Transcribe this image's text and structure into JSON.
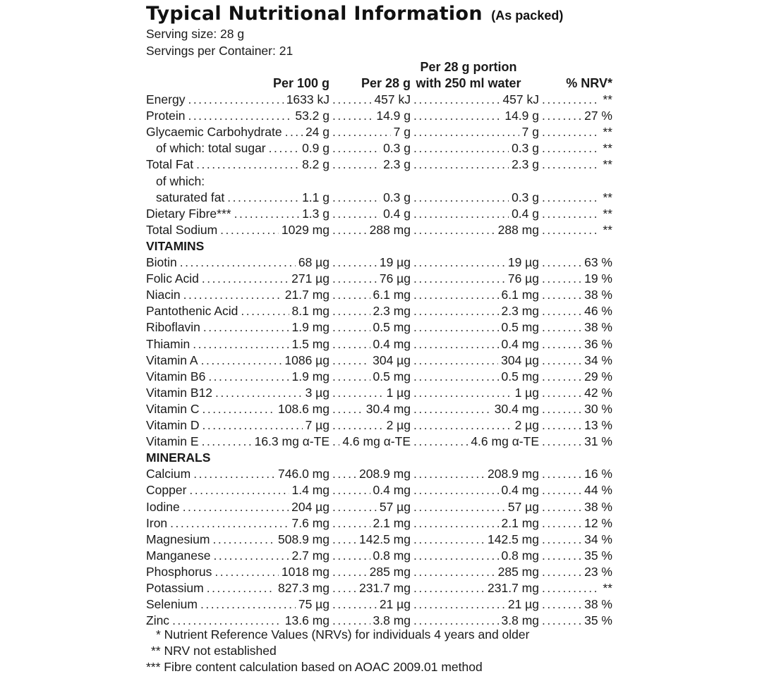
{
  "title": "Typical Nutritional Information",
  "title_note": "(As packed)",
  "serving_size": "Serving size: 28 g",
  "servings_per_container": "Servings per Container: 21",
  "headers": {
    "per100": "Per 100 g",
    "per28": "Per 28 g",
    "water_line1": "Per 28 g portion",
    "water_line2": "with 250 ml water",
    "nrv": "% NRV*"
  },
  "rows": [
    {
      "label": "Energy",
      "per100": "1633 kJ",
      "per28": "457 kJ",
      "water": "457 kJ",
      "nrv": "**"
    },
    {
      "label": "Protein",
      "per100": "53.2 g",
      "per28": "14.9 g",
      "water": "14.9 g",
      "nrv": "27 %"
    },
    {
      "label": "Glycaemic Carbohydrate",
      "per100": "24 g",
      "per28": "7 g",
      "water": "7 g",
      "nrv": "**"
    },
    {
      "label": "of which: total sugar",
      "indent": true,
      "per100": "0.9 g",
      "per28": "0.3 g",
      "water": "0.3 g",
      "nrv": "**"
    },
    {
      "label": "Total Fat",
      "per100": "8.2 g",
      "per28": "2.3 g",
      "water": "2.3 g",
      "nrv": "**"
    },
    {
      "label": "of which:",
      "indent": true,
      "plain": true
    },
    {
      "label": "saturated fat",
      "indent": true,
      "per100": "1.1 g",
      "per28": "0.3 g",
      "water": "0.3 g",
      "nrv": "**"
    },
    {
      "label": "Dietary Fibre***",
      "per100": "1.3 g",
      "per28": "0.4 g",
      "water": "0.4 g",
      "nrv": "**"
    },
    {
      "label": "Total Sodium",
      "per100": "1029 mg",
      "per28": "288 mg",
      "water": "288 mg",
      "nrv": "**"
    },
    {
      "label": "VITAMINS",
      "section": true
    },
    {
      "label": "Biotin",
      "per100": "68 µg",
      "per28": "19 µg",
      "water": "19 µg",
      "nrv": "63 %"
    },
    {
      "label": "Folic Acid",
      "per100": "271 µg",
      "per28": "76 µg",
      "water": "76 µg",
      "nrv": "19 %"
    },
    {
      "label": "Niacin",
      "per100": "21.7 mg",
      "per28": "6.1 mg",
      "water": "6.1 mg",
      "nrv": "38 %"
    },
    {
      "label": "Pantothenic Acid",
      "per100": "8.1 mg",
      "per28": "2.3 mg",
      "water": "2.3 mg",
      "nrv": "46 %"
    },
    {
      "label": "Riboflavin",
      "per100": "1.9 mg",
      "per28": "0.5 mg",
      "water": "0.5 mg",
      "nrv": "38 %"
    },
    {
      "label": "Thiamin",
      "per100": "1.5 mg",
      "per28": "0.4 mg",
      "water": "0.4 mg",
      "nrv": "36 %"
    },
    {
      "label": "Vitamin A",
      "per100": "1086 µg",
      "per28": "304 µg",
      "water": "304 µg",
      "nrv": "34 %"
    },
    {
      "label": "Vitamin B6",
      "per100": "1.9 mg",
      "per28": "0.5 mg",
      "water": "0.5 mg",
      "nrv": "29 %"
    },
    {
      "label": "Vitamin B12",
      "per100": "3 µg",
      "per28": "1 µg",
      "water": "1 µg",
      "nrv": "42 %"
    },
    {
      "label": "Vitamin C",
      "per100": "108.6 mg",
      "per28": "30.4 mg",
      "water": "30.4 mg",
      "nrv": "30 %"
    },
    {
      "label": "Vitamin D",
      "per100": "7 µg",
      "per28": "2 µg",
      "water": "2 µg",
      "nrv": "13 %"
    },
    {
      "label": "Vitamin E",
      "per100": "16.3 mg α-TE",
      "per28": "4.6 mg α-TE",
      "water": "4.6 mg α-TE",
      "nrv": "31 %"
    },
    {
      "label": "MINERALS",
      "section": true
    },
    {
      "label": "Calcium",
      "per100": "746.0 mg",
      "per28": "208.9 mg",
      "water": "208.9 mg",
      "nrv": "16 %"
    },
    {
      "label": "Copper",
      "per100": "1.4 mg",
      "per28": "0.4 mg",
      "water": "0.4 mg",
      "nrv": "44 %"
    },
    {
      "label": "Iodine",
      "per100": "204 µg",
      "per28": "57 µg",
      "water": "57 µg",
      "nrv": "38 %"
    },
    {
      "label": "Iron",
      "per100": "7.6 mg",
      "per28": "2.1 mg",
      "water": "2.1 mg",
      "nrv": "12 %"
    },
    {
      "label": "Magnesium",
      "per100": "508.9 mg",
      "per28": "142.5 mg",
      "water": "142.5 mg",
      "nrv": "34 %"
    },
    {
      "label": "Manganese",
      "per100": "2.7 mg",
      "per28": "0.8 mg",
      "water": "0.8 mg",
      "nrv": "35 %"
    },
    {
      "label": "Phosphorus",
      "per100": "1018 mg",
      "per28": "285 mg",
      "water": "285 mg",
      "nrv": "23 %"
    },
    {
      "label": "Potassium",
      "per100": "827.3 mg",
      "per28": "231.7 mg",
      "water": "231.7 mg",
      "nrv": "**"
    },
    {
      "label": "Selenium",
      "per100": "75 µg",
      "per28": "21 µg",
      "water": "21 µg",
      "nrv": "38 %"
    },
    {
      "label": "Zinc",
      "per100": "13.6 mg",
      "per28": "3.8 mg",
      "water": "3.8 mg",
      "nrv": "35 %"
    }
  ],
  "footnotes": [
    "* Nutrient Reference Values (NRVs) for individuals 4 years and older",
    "** NRV not established",
    "*** Fibre content calculation based on AOAC 2009.01 method"
  ]
}
